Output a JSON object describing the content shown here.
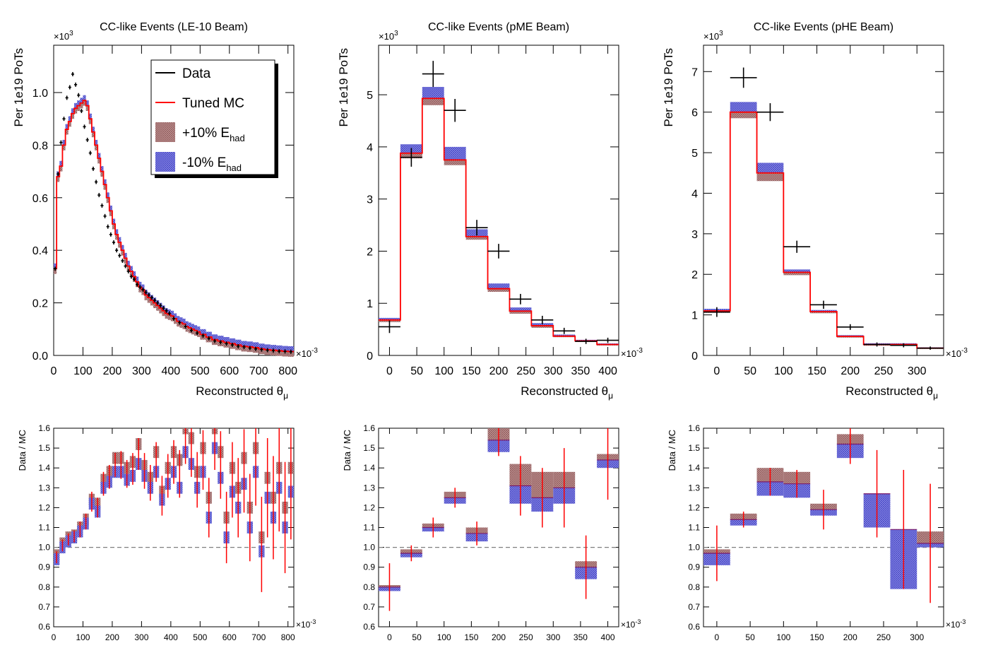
{
  "colors": {
    "data": "#000000",
    "mc": "#ff0000",
    "band_plus": "#b07878",
    "band_minus": "#6f6fd8",
    "dashed": "#808080"
  },
  "legend": {
    "entries": [
      {
        "label": "Data",
        "kind": "line",
        "color": "#000000"
      },
      {
        "label": "Tuned MC",
        "kind": "line",
        "color": "#ff0000"
      },
      {
        "label": "+10% E",
        "sub": "had",
        "kind": "band",
        "color": "#b07878"
      },
      {
        "label": "-10% E",
        "sub": "had",
        "kind": "band",
        "color": "#6f6fd8"
      }
    ]
  },
  "chart_data": [
    {
      "type": "histogram",
      "title": "CC-like Events (LE-10 Beam)",
      "ylabel": "Per 1e19 PoTs",
      "xlabel": "Reconstructed θ",
      "xlabel_sub": "μ",
      "x_multiplier": "×10",
      "x_multiplier_exp": "-3",
      "y_multiplier": "×10",
      "y_multiplier_exp": "3",
      "xlim": [
        0,
        820
      ],
      "ylim": [
        0,
        1.18
      ],
      "xticks": [
        0,
        100,
        200,
        300,
        400,
        500,
        600,
        700,
        800
      ],
      "xtick_labels": [
        "0",
        "100",
        "200",
        "300",
        "400",
        "500",
        "600",
        "700",
        "800"
      ],
      "yticks": [
        0,
        0.2,
        0.4,
        0.6,
        0.8,
        1.0
      ],
      "ytick_labels": [
        "0.0",
        "0.2",
        "0.4",
        "0.6",
        "0.8",
        "1.0"
      ],
      "bin_edges": [
        0,
        10,
        20,
        30,
        40,
        50,
        60,
        70,
        80,
        90,
        100,
        110,
        120,
        130,
        140,
        150,
        160,
        170,
        180,
        190,
        200,
        210,
        220,
        230,
        240,
        250,
        260,
        270,
        280,
        290,
        300,
        310,
        320,
        330,
        340,
        350,
        360,
        370,
        380,
        390,
        400,
        410,
        420,
        430,
        440,
        450,
        460,
        470,
        480,
        490,
        500,
        520,
        540,
        560,
        580,
        600,
        620,
        640,
        660,
        680,
        700,
        720,
        740,
        760,
        780,
        800,
        820
      ],
      "mc": [
        0.33,
        0.68,
        0.72,
        0.8,
        0.86,
        0.89,
        0.92,
        0.94,
        0.95,
        0.96,
        0.97,
        0.95,
        0.9,
        0.85,
        0.8,
        0.75,
        0.7,
        0.65,
        0.6,
        0.55,
        0.5,
        0.46,
        0.43,
        0.4,
        0.37,
        0.34,
        0.32,
        0.3,
        0.28,
        0.26,
        0.25,
        0.23,
        0.22,
        0.21,
        0.2,
        0.19,
        0.18,
        0.17,
        0.16,
        0.155,
        0.15,
        0.14,
        0.13,
        0.125,
        0.12,
        0.11,
        0.105,
        0.1,
        0.095,
        0.09,
        0.08,
        0.07,
        0.06,
        0.055,
        0.05,
        0.045,
        0.04,
        0.035,
        0.033,
        0.03,
        0.025,
        0.022,
        0.02,
        0.018,
        0.016,
        0.015
      ],
      "band_half_width": 0.02,
      "data_x": [
        5,
        15,
        25,
        35,
        45,
        55,
        65,
        75,
        85,
        95,
        105,
        115,
        125,
        135,
        145,
        155,
        165,
        175,
        185,
        195,
        205,
        215,
        225,
        235,
        245,
        255,
        265,
        275,
        285,
        295,
        305,
        315,
        325,
        335,
        345,
        355,
        365,
        375,
        385,
        395,
        410,
        430,
        450,
        470,
        490,
        510,
        530,
        550,
        570,
        590,
        610,
        630,
        650,
        670,
        690,
        710,
        730,
        750,
        770,
        790,
        810
      ],
      "data_y": [
        0.33,
        0.69,
        0.81,
        0.9,
        0.98,
        1.02,
        1.07,
        1.03,
        0.99,
        0.93,
        0.87,
        0.82,
        0.77,
        0.71,
        0.66,
        0.61,
        0.57,
        0.53,
        0.49,
        0.46,
        0.43,
        0.4,
        0.38,
        0.36,
        0.34,
        0.32,
        0.3,
        0.29,
        0.27,
        0.26,
        0.25,
        0.24,
        0.23,
        0.22,
        0.21,
        0.2,
        0.19,
        0.18,
        0.17,
        0.16,
        0.14,
        0.125,
        0.11,
        0.095,
        0.085,
        0.075,
        0.065,
        0.055,
        0.05,
        0.045,
        0.04,
        0.035,
        0.032,
        0.028,
        0.025,
        0.022,
        0.02,
        0.018,
        0.016,
        0.015,
        0.014
      ],
      "data_xerr": 5,
      "ratio": {
        "ylabel": "Data / MC",
        "ylim": [
          0.6,
          1.6
        ],
        "yticks": [
          0.6,
          0.7,
          0.8,
          0.9,
          1.0,
          1.1,
          1.2,
          1.3,
          1.4,
          1.5,
          1.6
        ],
        "ytick_labels": [
          "0.6",
          "0.7",
          "0.8",
          "0.9",
          "1.0",
          "1.1",
          "1.2",
          "1.3",
          "1.4",
          "1.5",
          "1.6"
        ],
        "bin_edges": [
          0,
          20,
          40,
          60,
          80,
          100,
          120,
          140,
          160,
          180,
          200,
          220,
          240,
          260,
          280,
          300,
          320,
          340,
          360,
          380,
          400,
          420,
          440,
          460,
          480,
          500,
          520,
          540,
          560,
          580,
          600,
          620,
          640,
          660,
          680,
          700,
          720,
          740,
          760,
          780,
          800,
          820
        ],
        "plus": [
          0.96,
          1.02,
          1.05,
          1.06,
          1.1,
          1.14,
          1.24,
          1.22,
          1.34,
          1.38,
          1.45,
          1.45,
          1.4,
          1.43,
          1.52,
          1.41,
          1.35,
          1.48,
          1.28,
          1.4,
          1.48,
          1.44,
          1.6,
          1.55,
          1.38,
          1.5,
          1.25,
          1.6,
          1.48,
          1.15,
          1.4,
          1.3,
          1.45,
          1.2,
          1.5,
          1.05,
          1.35,
          1.25,
          1.4,
          1.2,
          1.4
        ],
        "minus": [
          0.94,
          1.0,
          1.03,
          1.05,
          1.08,
          1.12,
          1.22,
          1.18,
          1.3,
          1.33,
          1.38,
          1.38,
          1.34,
          1.36,
          1.42,
          1.36,
          1.3,
          1.38,
          1.24,
          1.32,
          1.38,
          1.3,
          1.48,
          1.42,
          1.3,
          1.38,
          1.15,
          1.5,
          1.35,
          1.05,
          1.28,
          1.2,
          1.32,
          1.1,
          1.38,
          0.98,
          1.25,
          1.15,
          1.3,
          1.1,
          1.28
        ],
        "band_half_width": 0.03,
        "errors": [
          0.03,
          0.03,
          0.03,
          0.03,
          0.04,
          0.04,
          0.05,
          0.05,
          0.06,
          0.06,
          0.06,
          0.07,
          0.07,
          0.08,
          0.08,
          0.09,
          0.09,
          0.1,
          0.1,
          0.11,
          0.11,
          0.12,
          0.12,
          0.13,
          0.14,
          0.15,
          0.15,
          0.16,
          0.17,
          0.18,
          0.19,
          0.2,
          0.21,
          0.22,
          0.23,
          0.24,
          0.25,
          0.26,
          0.27,
          0.28,
          0.3
        ]
      }
    },
    {
      "type": "histogram",
      "title": "CC-like Events (pME Beam)",
      "ylabel": "Per 1e19 PoTs",
      "xlabel": "Reconstructed θ",
      "xlabel_sub": "μ",
      "x_multiplier": "×10",
      "x_multiplier_exp": "-3",
      "y_multiplier": "×10",
      "y_multiplier_exp": "3",
      "xlim": [
        -20,
        420
      ],
      "ylim": [
        0,
        5.95
      ],
      "xticks": [
        0,
        50,
        100,
        150,
        200,
        250,
        300,
        350,
        400
      ],
      "xtick_labels": [
        "0",
        "50",
        "100",
        "150",
        "200",
        "250",
        "300",
        "350",
        "400"
      ],
      "yticks": [
        0,
        1,
        2,
        3,
        4,
        5
      ],
      "ytick_labels": [
        "0",
        "1",
        "2",
        "3",
        "4",
        "5"
      ],
      "bin_edges": [
        -20,
        20,
        60,
        100,
        140,
        180,
        220,
        260,
        300,
        340,
        380,
        420
      ],
      "mc": [
        0.68,
        3.88,
        4.93,
        3.75,
        2.28,
        1.28,
        0.85,
        0.57,
        0.37,
        0.28,
        0.21
      ],
      "plus": [
        0.7,
        3.95,
        5.0,
        3.8,
        2.32,
        1.31,
        0.88,
        0.6,
        0.39,
        0.29,
        0.22
      ],
      "minus": [
        0.66,
        3.82,
        4.85,
        3.7,
        2.25,
        1.25,
        0.82,
        0.55,
        0.36,
        0.27,
        0.2
      ],
      "band_top": [
        0.72,
        4.05,
        5.15,
        4.0,
        2.42,
        1.38,
        0.92,
        0.62,
        0.4,
        0.3,
        0.23
      ],
      "band_bottom": [
        0.64,
        3.78,
        4.8,
        3.65,
        2.22,
        1.22,
        0.8,
        0.53,
        0.35,
        0.26,
        0.19
      ],
      "data_x": [
        0,
        40,
        80,
        120,
        160,
        200,
        240,
        280,
        320,
        360,
        400
      ],
      "data_y": [
        0.55,
        3.8,
        5.4,
        4.7,
        2.45,
        2.0,
        1.08,
        0.68,
        0.47,
        0.27,
        0.29
      ],
      "data_xerr": 20,
      "data_yerr": [
        0.12,
        0.18,
        0.25,
        0.22,
        0.15,
        0.14,
        0.1,
        0.08,
        0.06,
        0.05,
        0.05
      ],
      "ratio": {
        "ylabel": "Data / MC",
        "ylim": [
          0.6,
          1.6
        ],
        "yticks": [
          0.6,
          0.7,
          0.8,
          0.9,
          1.0,
          1.1,
          1.2,
          1.3,
          1.4,
          1.5,
          1.6
        ],
        "ytick_labels": [
          "0.6",
          "0.7",
          "0.8",
          "0.9",
          "1.0",
          "1.1",
          "1.2",
          "1.3",
          "1.4",
          "1.5",
          "1.6"
        ],
        "bin_edges": [
          -20,
          20,
          60,
          100,
          140,
          180,
          220,
          260,
          300,
          340,
          380,
          420
        ],
        "plus": [
          0.81,
          0.99,
          1.12,
          1.28,
          1.1,
          1.6,
          1.42,
          1.38,
          1.38,
          0.93,
          1.47
        ],
        "minus": [
          0.78,
          0.95,
          1.08,
          1.22,
          1.03,
          1.48,
          1.22,
          1.18,
          1.22,
          0.84,
          1.4
        ],
        "mc_line": [
          0.8,
          0.97,
          1.1,
          1.25,
          1.07,
          1.54,
          1.31,
          1.25,
          1.3,
          0.9,
          1.44
        ],
        "errors": [
          0.12,
          0.04,
          0.05,
          0.05,
          0.06,
          0.08,
          0.15,
          0.15,
          0.2,
          0.16,
          0.2
        ]
      }
    },
    {
      "type": "histogram",
      "title": "CC-like Events (pHE Beam)",
      "ylabel": "Per 1e19 PoTs",
      "xlabel": "Reconstructed θ",
      "xlabel_sub": "μ",
      "x_multiplier": "×10",
      "x_multiplier_exp": "-3",
      "y_multiplier": "×10",
      "y_multiplier_exp": "3",
      "xlim": [
        -20,
        340
      ],
      "ylim": [
        0,
        7.65
      ],
      "xticks": [
        0,
        50,
        100,
        150,
        200,
        250,
        300
      ],
      "xtick_labels": [
        "0",
        "50",
        "100",
        "150",
        "200",
        "250",
        "300"
      ],
      "yticks": [
        0,
        1,
        2,
        3,
        4,
        5,
        6,
        7
      ],
      "ytick_labels": [
        "0",
        "1",
        "2",
        "3",
        "4",
        "5",
        "6",
        "7"
      ],
      "bin_edges": [
        -20,
        20,
        60,
        100,
        140,
        180,
        220,
        260,
        300,
        340
      ],
      "mc": [
        1.1,
        6.0,
        4.5,
        2.05,
        1.08,
        0.47,
        0.27,
        0.27,
        0.18
      ],
      "band_top": [
        1.15,
        6.25,
        4.75,
        2.12,
        1.12,
        0.5,
        0.3,
        0.3,
        0.2
      ],
      "band_bottom": [
        1.05,
        5.85,
        4.3,
        1.98,
        1.04,
        0.44,
        0.24,
        0.24,
        0.16
      ],
      "data_x": [
        0,
        40,
        80,
        120,
        160,
        200,
        240,
        280,
        320
      ],
      "data_y": [
        1.07,
        6.85,
        6.0,
        2.68,
        1.25,
        0.7,
        0.27,
        0.25,
        0.18
      ],
      "data_xerr": 20,
      "data_yerr": [
        0.12,
        0.25,
        0.22,
        0.15,
        0.1,
        0.07,
        0.05,
        0.05,
        0.04
      ],
      "ratio": {
        "ylabel": "Data / MC",
        "ylim": [
          0.6,
          1.6
        ],
        "yticks": [
          0.6,
          0.7,
          0.8,
          0.9,
          1.0,
          1.1,
          1.2,
          1.3,
          1.4,
          1.5,
          1.6
        ],
        "ytick_labels": [
          "0.6",
          "0.7",
          "0.8",
          "0.9",
          "1.0",
          "1.1",
          "1.2",
          "1.3",
          "1.4",
          "1.5",
          "1.6"
        ],
        "bin_edges": [
          -20,
          20,
          60,
          100,
          140,
          180,
          220,
          260,
          300,
          340
        ],
        "plus": [
          0.99,
          1.17,
          1.4,
          1.38,
          1.22,
          1.57,
          1.27,
          1.05,
          1.08
        ],
        "minus": [
          0.91,
          1.11,
          1.26,
          1.25,
          1.16,
          1.45,
          1.1,
          0.79,
          1.0
        ],
        "mc_line": [
          0.97,
          1.14,
          1.33,
          1.32,
          1.19,
          1.52,
          1.27,
          1.09,
          1.02
        ],
        "errors": [
          0.14,
          0.04,
          0.07,
          0.07,
          0.1,
          0.1,
          0.22,
          0.3,
          0.3
        ]
      }
    }
  ]
}
